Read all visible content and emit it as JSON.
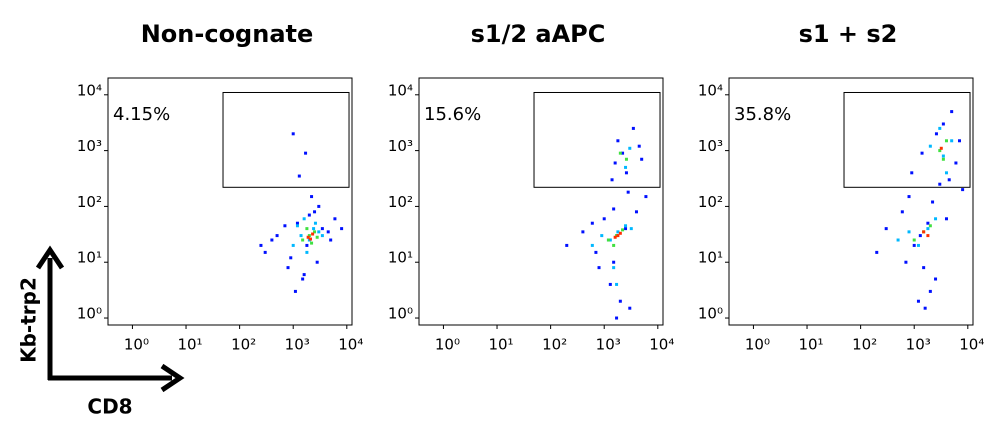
{
  "x_label": "CD8",
  "y_label": "Kb-trp2",
  "chart_data": [
    {
      "type": "scatter",
      "title": "Non-cognate",
      "annotation": "4.15%",
      "xscale": "log",
      "yscale": "log",
      "xlim": [
        0.35,
        12500
      ],
      "ylim": [
        0.75,
        20000
      ],
      "xticks": [
        {
          "value": 1,
          "label": "10⁰"
        },
        {
          "value": 10,
          "label": "10¹"
        },
        {
          "value": 100,
          "label": "10²"
        },
        {
          "value": 1000,
          "label": "10³"
        },
        {
          "value": 10000,
          "label": "10⁴"
        }
      ],
      "yticks": [
        {
          "value": 1,
          "label": "10⁰"
        },
        {
          "value": 10,
          "label": "10¹"
        },
        {
          "value": 100,
          "label": "10²"
        },
        {
          "value": 1000,
          "label": "10³"
        },
        {
          "value": 10000,
          "label": "10⁴"
        }
      ],
      "gate": {
        "x": [
          49,
          11000
        ],
        "y": [
          220,
          11000
        ]
      },
      "series": [
        {
          "color": "#0010ff",
          "x": [
            300,
            500,
            800,
            1200,
            2000,
            3500,
            6000,
            400,
            900,
            1500,
            2500,
            4500,
            700,
            1100,
            1800,
            3000,
            5000,
            2200,
            1300,
            1700,
            250,
            8000,
            1000,
            1600,
            2800
          ],
          "values": [
            15,
            30,
            8,
            50,
            70,
            40,
            60,
            25,
            12,
            5,
            80,
            35,
            45,
            3,
            20,
            100,
            25,
            150,
            350,
            900,
            20,
            40,
            2000,
            6,
            10
          ]
        },
        {
          "color": "#00b8ff",
          "x": [
            1000,
            1400,
            1800,
            2400,
            3000,
            1200,
            2000,
            2600,
            3500,
            1600
          ],
          "values": [
            20,
            30,
            15,
            40,
            35,
            45,
            25,
            50,
            30,
            60
          ]
        },
        {
          "color": "#40e040",
          "x": [
            1500,
            2000,
            2500,
            1800,
            2200,
            2800
          ],
          "values": [
            25,
            30,
            35,
            40,
            22,
            28
          ]
        },
        {
          "color": "#ff3000",
          "x": [
            1900,
            2300,
            2100
          ],
          "values": [
            28,
            32,
            26
          ]
        }
      ]
    },
    {
      "type": "scatter",
      "title": "s1/2 aAPC",
      "annotation": "15.6%",
      "xscale": "log",
      "yscale": "log",
      "xlim": [
        0.35,
        12500
      ],
      "ylim": [
        0.75,
        20000
      ],
      "xticks": [
        {
          "value": 1,
          "label": "10⁰"
        },
        {
          "value": 10,
          "label": "10¹"
        },
        {
          "value": 100,
          "label": "10²"
        },
        {
          "value": 1000,
          "label": "10³"
        },
        {
          "value": 10000,
          "label": "10⁴"
        }
      ],
      "yticks": [
        {
          "value": 1,
          "label": "10⁰"
        },
        {
          "value": 10,
          "label": "10¹"
        },
        {
          "value": 100,
          "label": "10²"
        },
        {
          "value": 1000,
          "label": "10³"
        },
        {
          "value": 10000,
          "label": "10⁴"
        }
      ],
      "gate": {
        "x": [
          49,
          11000
        ],
        "y": [
          220,
          11000
        ]
      },
      "series": [
        {
          "color": "#0010ff",
          "x": [
            200,
            400,
            700,
            1000,
            1500,
            2500,
            4000,
            6000,
            800,
            1300,
            2000,
            3000,
            1600,
            1800,
            1400,
            2200,
            3500,
            5000,
            2800,
            1200,
            600,
            1700,
            2600,
            4500,
            1500
          ],
          "values": [
            20,
            35,
            15,
            60,
            90,
            40,
            80,
            150,
            8,
            4,
            2,
            1.5,
            600,
            1500,
            300,
            900,
            2500,
            700,
            180,
            25,
            50,
            1,
            400,
            1200,
            10
          ]
        },
        {
          "color": "#00b8ff",
          "x": [
            600,
            900,
            1300,
            1800,
            2500,
            3200,
            1500,
            1700,
            2500,
            3000
          ],
          "values": [
            20,
            30,
            25,
            35,
            45,
            40,
            8,
            4,
            500,
            1100
          ]
        },
        {
          "color": "#40e040",
          "x": [
            1200,
            1700,
            2200,
            1500,
            2600,
            2000
          ],
          "values": [
            25,
            30,
            38,
            20,
            700,
            900
          ]
        },
        {
          "color": "#ff3000",
          "x": [
            1600,
            2000,
            1800
          ],
          "values": [
            28,
            33,
            30
          ]
        }
      ]
    },
    {
      "type": "scatter",
      "title": "s1 + s2",
      "annotation": "35.8%",
      "xscale": "log",
      "yscale": "log",
      "xlim": [
        0.35,
        12500
      ],
      "ylim": [
        0.75,
        20000
      ],
      "xticks": [
        {
          "value": 1,
          "label": "10⁰"
        },
        {
          "value": 10,
          "label": "10¹"
        },
        {
          "value": 100,
          "label": "10²"
        },
        {
          "value": 1000,
          "label": "10³"
        },
        {
          "value": 10000,
          "label": "10⁴"
        }
      ],
      "yticks": [
        {
          "value": 1,
          "label": "10⁰"
        },
        {
          "value": 10,
          "label": "10¹"
        },
        {
          "value": 100,
          "label": "10²"
        },
        {
          "value": 1000,
          "label": "10³"
        },
        {
          "value": 10000,
          "label": "10⁴"
        }
      ],
      "gate": {
        "x": [
          49,
          11000
        ],
        "y": [
          220,
          11000
        ]
      },
      "series": [
        {
          "color": "#0010ff",
          "x": [
            200,
            300,
            600,
            1000,
            1500,
            2500,
            4000,
            8000,
            800,
            1200,
            1600,
            2000,
            900,
            1400,
            2600,
            3500,
            5000,
            7000,
            6000,
            3000,
            1800,
            700,
            1300,
            4500,
            2200
          ],
          "values": [
            15,
            40,
            80,
            20,
            8,
            5,
            60,
            200,
            150,
            2,
            1.5,
            3,
            400,
            900,
            2000,
            3000,
            5000,
            1500,
            600,
            250,
            50,
            10,
            30,
            300,
            120
          ]
        },
        {
          "color": "#00b8ff",
          "x": [
            500,
            800,
            1200,
            1800,
            2500,
            3500,
            5000,
            2000,
            3000,
            4000
          ],
          "values": [
            25,
            35,
            20,
            40,
            60,
            800,
            1500,
            1200,
            2500,
            400
          ]
        },
        {
          "color": "#40e040",
          "x": [
            1000,
            1500,
            2000,
            3000,
            4000,
            3500
          ],
          "values": [
            25,
            35,
            45,
            1000,
            1500,
            700
          ]
        },
        {
          "color": "#ff3000",
          "x": [
            1500,
            1800,
            3200
          ],
          "values": [
            35,
            30,
            1100
          ]
        }
      ]
    }
  ]
}
